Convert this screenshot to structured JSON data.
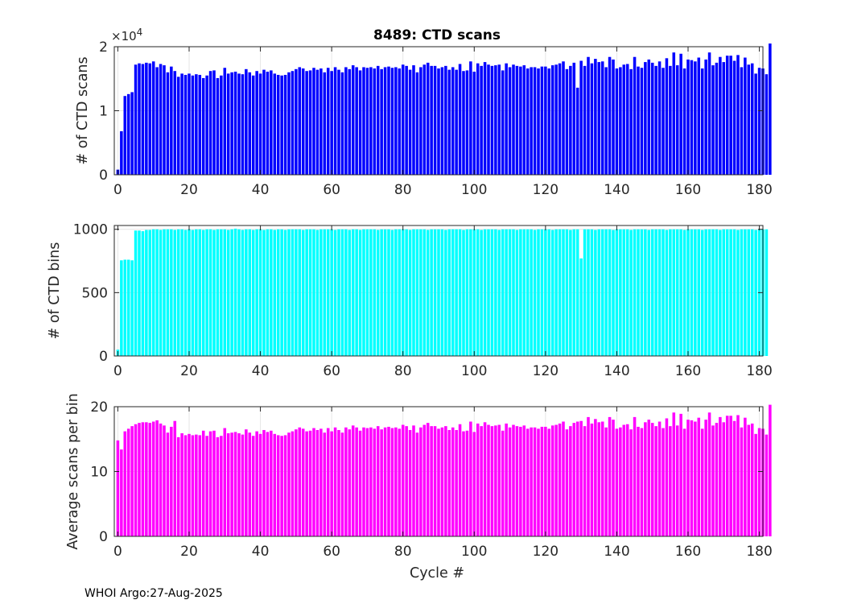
{
  "figure": {
    "title": "8489: CTD scans",
    "footer": "WHOI Argo:27-Aug-2025",
    "xlabel": "Cycle #"
  },
  "chart_data": [
    {
      "type": "bar",
      "ylabel": "# of CTD scans",
      "exponent_label": "×10",
      "exponent_power": "4",
      "color": "#0000ff",
      "xlim": [
        -1,
        181
      ],
      "ylim": [
        0,
        2
      ],
      "xticks": [
        0,
        20,
        40,
        60,
        80,
        100,
        120,
        140,
        160,
        180
      ],
      "xtick_labels": [
        "0",
        "20",
        "40",
        "60",
        "80",
        "100",
        "120",
        "140",
        "160",
        "180"
      ],
      "yticks": [
        0,
        1,
        2
      ],
      "ytick_labels": [
        "0",
        "1",
        "2"
      ],
      "x_start": 0,
      "values": [
        0.08,
        0.68,
        1.23,
        1.26,
        1.29,
        1.72,
        1.74,
        1.73,
        1.75,
        1.74,
        1.77,
        1.68,
        1.73,
        1.71,
        1.6,
        1.69,
        1.62,
        1.53,
        1.58,
        1.56,
        1.58,
        1.55,
        1.57,
        1.56,
        1.51,
        1.55,
        1.62,
        1.63,
        1.51,
        1.55,
        1.67,
        1.58,
        1.6,
        1.61,
        1.58,
        1.57,
        1.65,
        1.6,
        1.55,
        1.62,
        1.58,
        1.64,
        1.61,
        1.63,
        1.58,
        1.56,
        1.55,
        1.56,
        1.6,
        1.62,
        1.65,
        1.68,
        1.66,
        1.62,
        1.63,
        1.67,
        1.64,
        1.66,
        1.6,
        1.67,
        1.62,
        1.68,
        1.64,
        1.6,
        1.68,
        1.65,
        1.71,
        1.68,
        1.63,
        1.68,
        1.67,
        1.68,
        1.66,
        1.7,
        1.65,
        1.68,
        1.69,
        1.67,
        1.68,
        1.66,
        1.72,
        1.7,
        1.64,
        1.71,
        1.6,
        1.68,
        1.72,
        1.75,
        1.7,
        1.7,
        1.66,
        1.68,
        1.7,
        1.64,
        1.68,
        1.64,
        1.73,
        1.62,
        1.63,
        1.77,
        1.61,
        1.74,
        1.7,
        1.76,
        1.72,
        1.7,
        1.71,
        1.72,
        1.63,
        1.74,
        1.68,
        1.72,
        1.7,
        1.69,
        1.71,
        1.66,
        1.68,
        1.68,
        1.66,
        1.69,
        1.69,
        1.66,
        1.71,
        1.72,
        1.74,
        1.77,
        1.65,
        1.7,
        1.75,
        1.36,
        1.78,
        1.7,
        1.84,
        1.74,
        1.81,
        1.76,
        1.77,
        1.68,
        1.84,
        1.8,
        1.66,
        1.68,
        1.72,
        1.73,
        1.65,
        1.84,
        1.69,
        1.67,
        1.76,
        1.8,
        1.75,
        1.7,
        1.77,
        1.67,
        1.82,
        1.7,
        1.91,
        1.71,
        1.89,
        1.66,
        1.8,
        1.79,
        1.77,
        1.83,
        1.66,
        1.8,
        1.91,
        1.71,
        1.75,
        1.84,
        1.76,
        1.86,
        1.86,
        1.78,
        1.87,
        1.68,
        1.83,
        1.72,
        1.74,
        1.58,
        1.67,
        1.66,
        1.57,
        2.05
      ]
    },
    {
      "type": "bar",
      "ylabel": "# of CTD bins",
      "color": "#00ffff",
      "xlim": [
        -1,
        181
      ],
      "ylim": [
        0,
        1030
      ],
      "xticks": [
        0,
        20,
        40,
        60,
        80,
        100,
        120,
        140,
        160,
        180
      ],
      "xtick_labels": [
        "0",
        "20",
        "40",
        "60",
        "80",
        "100",
        "120",
        "140",
        "160",
        "180"
      ],
      "yticks": [
        0,
        500,
        1000
      ],
      "ytick_labels": [
        "0",
        "500",
        "1000"
      ],
      "x_start": 0,
      "values": [
        50,
        755,
        760,
        760,
        755,
        990,
        990,
        985,
        995,
        995,
        1000,
        1000,
        995,
        1000,
        1000,
        1000,
        995,
        1000,
        1000,
        995,
        1000,
        995,
        1000,
        1000,
        995,
        1000,
        1000,
        995,
        1000,
        1000,
        1000,
        995,
        1000,
        1005,
        1000,
        995,
        1000,
        1000,
        995,
        1000,
        1000,
        995,
        1000,
        1000,
        995,
        1000,
        1000,
        995,
        1000,
        1000,
        1000,
        1000,
        995,
        1000,
        1000,
        1000,
        995,
        1000,
        1000,
        1000,
        1000,
        995,
        1000,
        1000,
        1000,
        995,
        1000,
        1000,
        995,
        1000,
        1000,
        1000,
        1000,
        995,
        1000,
        1000,
        1000,
        995,
        1000,
        1000,
        1000,
        1000,
        995,
        1000,
        1000,
        1000,
        1000,
        995,
        1000,
        1000,
        1000,
        1000,
        995,
        1000,
        1000,
        1000,
        1000,
        995,
        1000,
        1000,
        1000,
        1000,
        995,
        1000,
        1000,
        1000,
        1000,
        995,
        1000,
        1000,
        1000,
        1000,
        995,
        1000,
        1000,
        1000,
        1000,
        995,
        1000,
        1000,
        1000,
        1000,
        995,
        1000,
        1000,
        1000,
        1000,
        995,
        1000,
        1000,
        770,
        1000,
        1000,
        1000,
        995,
        1000,
        1000,
        1000,
        1000,
        995,
        1000,
        1000,
        1000,
        1000,
        995,
        1000,
        1000,
        1000,
        1000,
        995,
        1000,
        1000,
        1000,
        1000,
        995,
        1000,
        1000,
        1000,
        1000,
        995,
        1000,
        1000,
        1000,
        1000,
        995,
        1000,
        1000,
        1000,
        1000,
        995,
        1000,
        1000,
        1000,
        1000,
        995,
        1000,
        1000,
        1000,
        1000,
        995,
        1000,
        1000,
        1000
      ]
    },
    {
      "type": "bar",
      "ylabel": "Average scans per bin",
      "color": "#ff00ff",
      "xlim": [
        -1,
        181
      ],
      "ylim": [
        0,
        20
      ],
      "xticks": [
        0,
        20,
        40,
        60,
        80,
        100,
        120,
        140,
        160,
        180
      ],
      "xtick_labels": [
        "0",
        "20",
        "40",
        "60",
        "80",
        "100",
        "120",
        "140",
        "160",
        "180"
      ],
      "yticks": [
        0,
        10,
        20
      ],
      "ytick_labels": [
        "0",
        "10",
        "20"
      ],
      "x_start": 0,
      "values": [
        14.8,
        13.4,
        16.2,
        16.6,
        17.0,
        17.3,
        17.5,
        17.6,
        17.6,
        17.5,
        17.7,
        17.9,
        17.4,
        17.1,
        16.0,
        16.9,
        17.8,
        15.3,
        15.9,
        15.6,
        15.8,
        15.6,
        15.7,
        15.6,
        16.3,
        15.5,
        16.2,
        16.3,
        15.3,
        15.5,
        16.7,
        15.9,
        16.0,
        16.1,
        15.9,
        15.7,
        16.5,
        16.0,
        15.5,
        16.2,
        15.8,
        16.4,
        16.1,
        16.3,
        15.8,
        15.6,
        15.5,
        15.6,
        16.0,
        16.2,
        16.5,
        16.8,
        16.6,
        16.2,
        16.3,
        16.7,
        16.4,
        16.6,
        16.0,
        16.7,
        16.2,
        16.8,
        16.4,
        16.0,
        16.8,
        16.5,
        17.1,
        16.8,
        16.3,
        16.8,
        16.7,
        16.8,
        16.6,
        17.0,
        16.5,
        16.8,
        16.9,
        16.7,
        16.8,
        16.6,
        17.2,
        17.0,
        16.4,
        17.1,
        16.0,
        16.8,
        17.2,
        17.5,
        17.0,
        17.0,
        16.6,
        16.8,
        17.0,
        16.4,
        16.8,
        16.4,
        17.3,
        16.2,
        16.3,
        17.7,
        16.1,
        17.4,
        17.0,
        17.6,
        17.2,
        17.0,
        17.1,
        17.2,
        16.3,
        17.4,
        16.8,
        17.2,
        17.0,
        16.9,
        17.1,
        16.6,
        16.8,
        16.8,
        16.6,
        16.9,
        16.9,
        16.6,
        17.1,
        17.2,
        17.4,
        17.7,
        16.5,
        17.0,
        17.5,
        17.7,
        17.8,
        17.0,
        18.4,
        17.4,
        18.1,
        17.6,
        17.7,
        16.8,
        18.4,
        18.0,
        16.6,
        16.8,
        17.2,
        17.3,
        16.5,
        18.4,
        16.9,
        16.7,
        17.6,
        18.0,
        17.5,
        17.0,
        17.7,
        16.7,
        18.2,
        17.0,
        19.1,
        17.1,
        18.9,
        16.6,
        18.0,
        17.9,
        17.7,
        18.3,
        16.6,
        18.0,
        19.1,
        17.1,
        17.5,
        18.4,
        17.6,
        18.6,
        18.6,
        17.8,
        18.7,
        16.8,
        18.3,
        17.2,
        17.4,
        15.8,
        16.7,
        16.6,
        15.7,
        20.3
      ]
    }
  ]
}
